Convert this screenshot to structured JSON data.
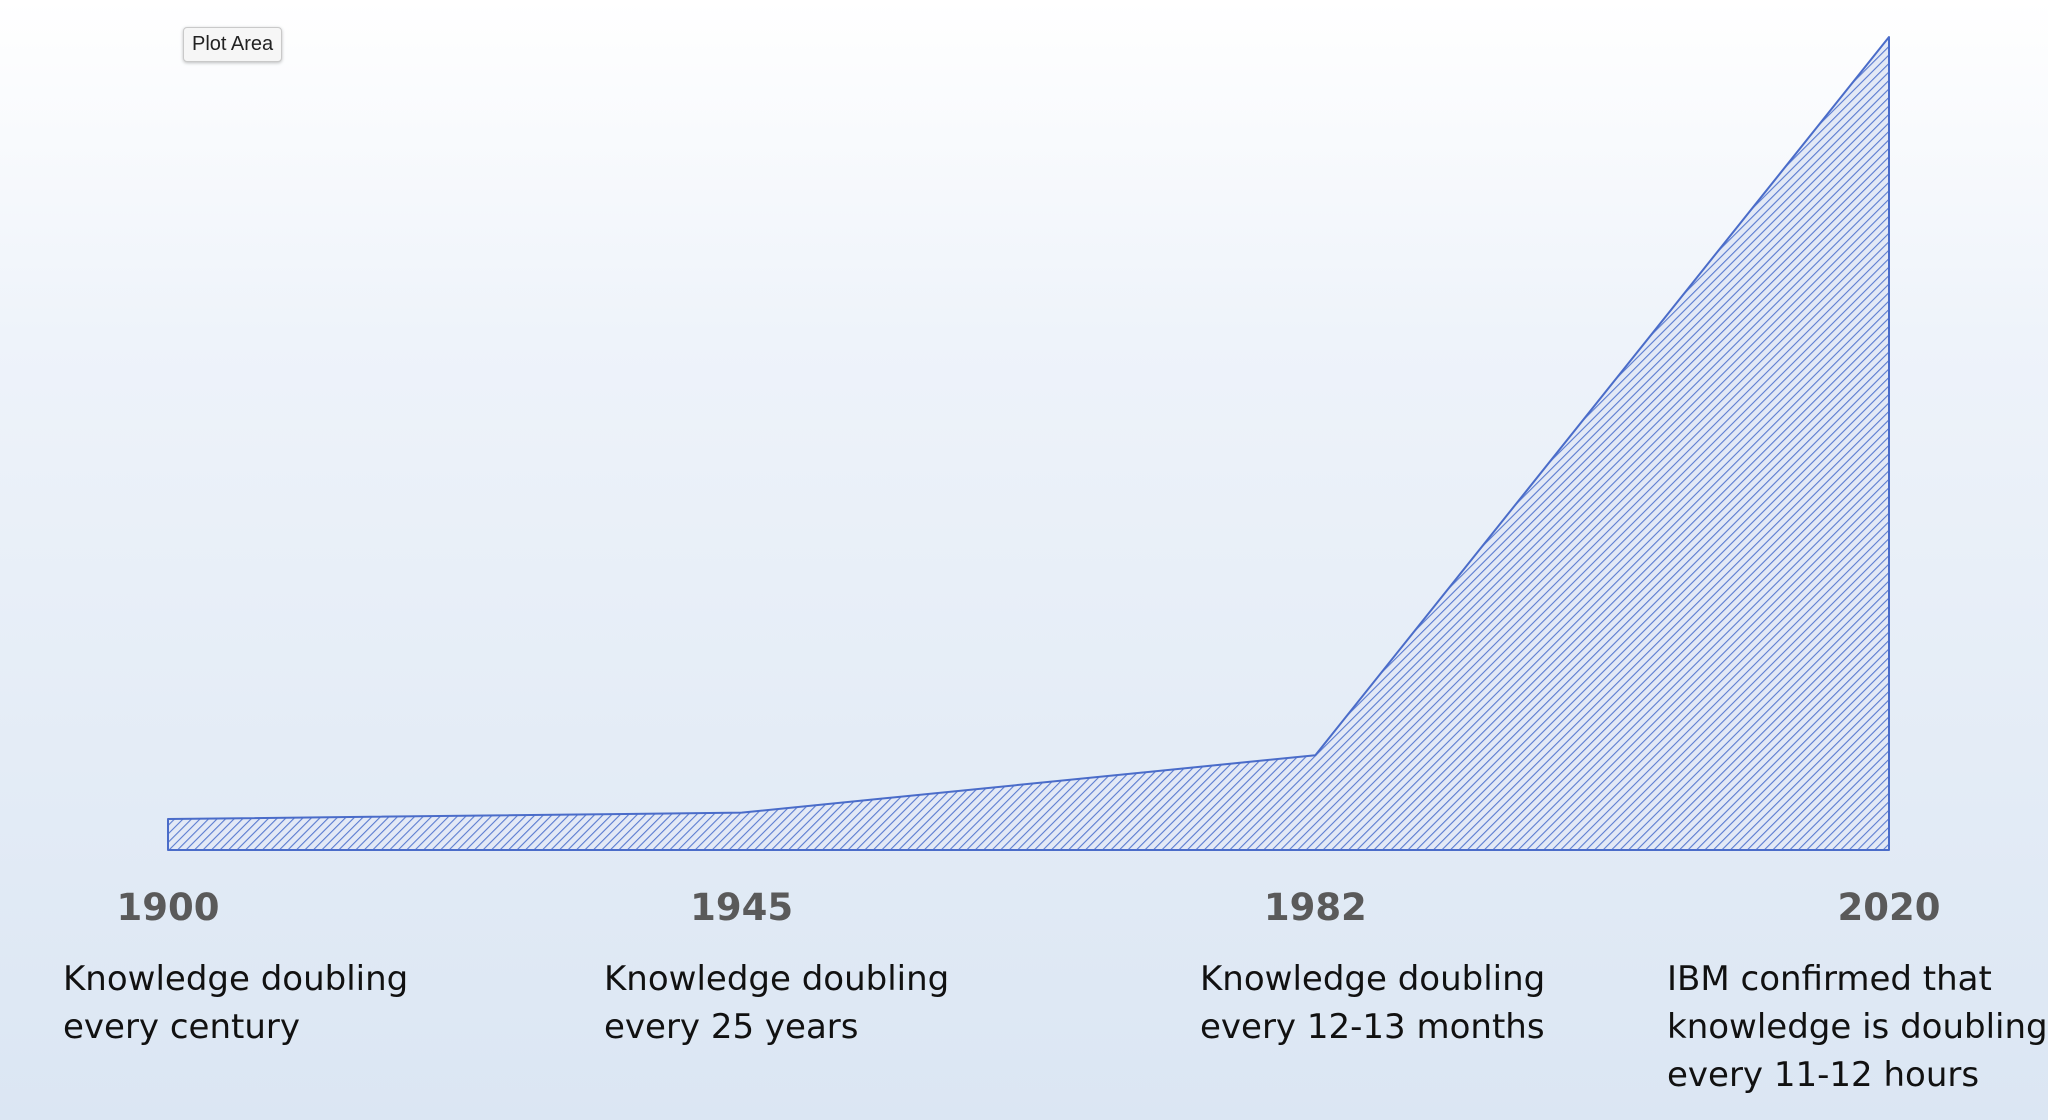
{
  "tooltip": {
    "label": "Plot Area"
  },
  "colors": {
    "area_stroke": "#4a6cc9",
    "area_hatch": "#5a7bd0",
    "area_fill": "#e3e9f6",
    "tick_text": "#5a5a5a",
    "annotation_text": "#111111"
  },
  "chart_data": {
    "type": "area",
    "title": "",
    "xlabel": "",
    "ylabel": "",
    "x": [
      "1900",
      "1945",
      "1982",
      "2020"
    ],
    "series": [
      {
        "values": [
          1,
          1.4,
          5,
          50
        ]
      }
    ],
    "ylim": [
      0,
      50
    ],
    "grid": false,
    "fill_pattern": "diagonal-hatch",
    "annotations": [
      {
        "x": "1900",
        "lines": [
          "Knowledge doubling",
          "every century"
        ]
      },
      {
        "x": "1945",
        "lines": [
          "Knowledge doubling",
          "every 25 years"
        ]
      },
      {
        "x": "1982",
        "lines": [
          "Knowledge doubling",
          "every 12-13 months"
        ]
      },
      {
        "x": "2020",
        "lines": [
          "IBM confirmed that",
          "knowledge is doubling",
          "every 11-12 hours"
        ]
      }
    ]
  }
}
